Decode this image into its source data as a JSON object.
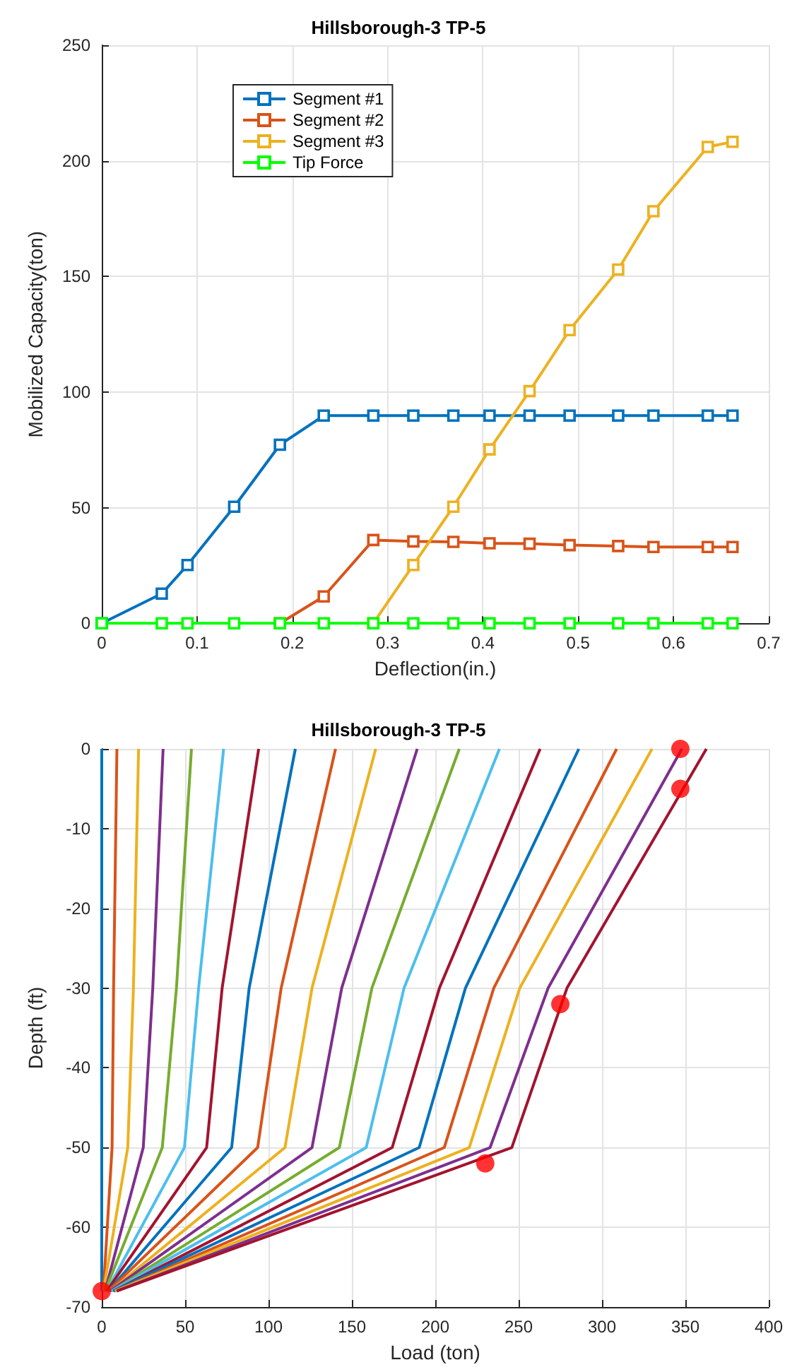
{
  "chart_data": [
    {
      "type": "line",
      "title": "Hillsborough-3 TP-5",
      "xlabel": "Deflection(in.)",
      "ylabel": "Mobilized Capacity(ton)",
      "x": [
        0,
        0.063,
        0.09,
        0.139,
        0.187,
        0.233,
        0.285,
        0.327,
        0.369,
        0.407,
        0.449,
        0.491,
        0.542,
        0.579,
        0.636,
        0.662
      ],
      "series": [
        {
          "name": "Segment #1",
          "color": "#0072bd",
          "values": [
            0,
            12.8,
            25.2,
            50.4,
            77.2,
            89.8,
            89.8,
            89.8,
            89.8,
            89.8,
            89.8,
            89.8,
            89.8,
            89.8,
            89.8,
            89.8
          ]
        },
        {
          "name": "Segment #2",
          "color": "#d95319",
          "values": [
            null,
            null,
            null,
            null,
            0,
            11.6,
            36,
            35.4,
            35.2,
            34.6,
            34.4,
            33.8,
            33.4,
            33,
            33,
            33
          ]
        },
        {
          "name": "Segment #3",
          "color": "#edb120",
          "values": [
            null,
            null,
            null,
            null,
            null,
            null,
            0,
            25.2,
            50.4,
            75.2,
            100.4,
            126.8,
            153,
            178.2,
            206,
            208.2
          ]
        },
        {
          "name": "Tip Force",
          "color": "#00ff00",
          "values": [
            0,
            0,
            0,
            0,
            0,
            0,
            0,
            0,
            0,
            0,
            0,
            0,
            0,
            0,
            0,
            0
          ]
        }
      ],
      "xlim": [
        0,
        0.7
      ],
      "xticks": [
        0,
        0.1,
        0.2,
        0.3,
        0.4,
        0.5,
        0.6,
        0.7
      ],
      "ylim": [
        0,
        250
      ],
      "yticks": [
        0,
        50,
        100,
        150,
        200,
        250
      ],
      "grid": true,
      "legend": "top left",
      "marker": "square",
      "line_style": "solid"
    },
    {
      "type": "line",
      "title": "Hillsborough-3 TP-5",
      "xlabel": "Load (ton)",
      "ylabel": "Depth (ft)",
      "series": [
        {
          "color": "#0072bd",
          "x": [
            0,
            0,
            0,
            0
          ],
          "values": [
            0,
            -30,
            -50,
            -68
          ]
        },
        {
          "color": "#d95319",
          "x": [
            9.1,
            7.1,
            6.2,
            1
          ],
          "values": [
            0,
            -30,
            -50,
            -68
          ]
        },
        {
          "color": "#edb120",
          "x": [
            22.1,
            19,
            15.6,
            1
          ],
          "values": [
            0,
            -30,
            -50,
            -68
          ]
        },
        {
          "color": "#7e2f8e",
          "x": [
            36.8,
            30.6,
            24.9,
            2
          ],
          "values": [
            0,
            -30,
            -50,
            -68
          ]
        },
        {
          "color": "#77ac30",
          "x": [
            53.8,
            44.8,
            36.3,
            2
          ],
          "values": [
            0,
            -30,
            -50,
            -68
          ]
        },
        {
          "color": "#4dbeee",
          "x": [
            73.1,
            58.1,
            49.6,
            3
          ],
          "values": [
            0,
            -30,
            -50,
            -68
          ]
        },
        {
          "color": "#a2142f",
          "x": [
            94.1,
            72.2,
            62.9,
            3
          ],
          "values": [
            0,
            -30,
            -50,
            -68
          ]
        },
        {
          "color": "#0072bd",
          "x": [
            116.1,
            88.4,
            77.9,
            4
          ],
          "values": [
            0,
            -30,
            -50,
            -68
          ]
        },
        {
          "color": "#d95319",
          "x": [
            140.2,
            107.6,
            93.5,
            4
          ],
          "values": [
            0,
            -30,
            -50,
            -68
          ]
        },
        {
          "color": "#edb120",
          "x": [
            164.3,
            126.1,
            109.9,
            5
          ],
          "values": [
            0,
            -30,
            -50,
            -68
          ]
        },
        {
          "color": "#7e2f8e",
          "x": [
            189.2,
            143.9,
            126.1,
            5
          ],
          "values": [
            0,
            -30,
            -50,
            -68
          ]
        },
        {
          "color": "#77ac30",
          "x": [
            214.4,
            162,
            142.5,
            6
          ],
          "values": [
            0,
            -30,
            -50,
            -68
          ]
        },
        {
          "color": "#4dbeee",
          "x": [
            238.5,
            181.3,
            158.6,
            6
          ],
          "values": [
            0,
            -30,
            -50,
            -68
          ]
        },
        {
          "color": "#a2142f",
          "x": [
            262.9,
            202.5,
            174.2,
            7
          ],
          "values": [
            0,
            -30,
            -50,
            -68
          ]
        },
        {
          "color": "#0072bd",
          "x": [
            286.1,
            218.1,
            190.4,
            7
          ],
          "values": [
            0,
            -30,
            -50,
            -68
          ]
        },
        {
          "color": "#d95319",
          "x": [
            308.8,
            235.1,
            205.4,
            8
          ],
          "values": [
            0,
            -30,
            -50,
            -68
          ]
        },
        {
          "color": "#edb120",
          "x": [
            330,
            250.7,
            220.4,
            8
          ],
          "values": [
            0,
            -30,
            -50,
            -68
          ]
        },
        {
          "color": "#7e2f8e",
          "x": [
            347.9,
            267.7,
            232.9,
            9
          ],
          "values": [
            0,
            -30,
            -50,
            -68
          ]
        },
        {
          "color": "#a2142f",
          "x": [
            362.6,
            279,
            245.9,
            9
          ],
          "values": [
            0,
            -30,
            -50,
            -68
          ]
        },
        {
          "type": "scatter",
          "marker": "circle",
          "color": "#ff0000",
          "x": [
            0,
            347,
            347,
            275,
            230
          ],
          "values": [
            -68,
            0,
            -5,
            -32,
            -52
          ]
        }
      ],
      "xlim": [
        0,
        400
      ],
      "xticks": [
        0,
        50,
        100,
        150,
        200,
        250,
        300,
        350,
        400
      ],
      "ylim": [
        -70,
        0
      ],
      "yticks": [
        -70,
        -60,
        -50,
        -40,
        -30,
        -20,
        -10,
        0
      ],
      "grid": true,
      "marker": "none",
      "line_style": "solid"
    }
  ]
}
